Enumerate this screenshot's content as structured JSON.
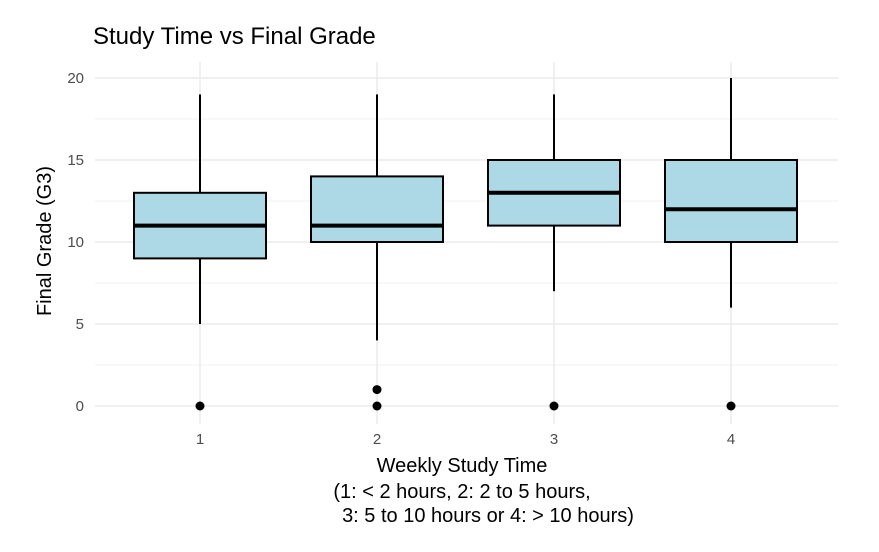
{
  "chart_data": {
    "type": "boxplot",
    "title": "Study Time vs Final Grade",
    "xlabel": [
      "Weekly Study Time",
      "(1: < 2 hours, 2: 2 to 5 hours,",
      "3: 5 to 10 hours or 4: > 10 hours)"
    ],
    "ylabel": "Final Grade (G3)",
    "categories": [
      "1",
      "2",
      "3",
      "4"
    ],
    "ylim": [
      -1,
      21
    ],
    "yticks": [
      0,
      5,
      10,
      15,
      20
    ],
    "grid": true,
    "legend": "none",
    "fill_color": "#add8e6",
    "boxes": [
      {
        "category": "1",
        "whisker_low": 5,
        "q1": 9,
        "median": 11,
        "q3": 13,
        "whisker_high": 19,
        "outliers": [
          0
        ]
      },
      {
        "category": "2",
        "whisker_low": 4,
        "q1": 10,
        "median": 11,
        "q3": 14,
        "whisker_high": 19,
        "outliers": [
          0,
          1
        ]
      },
      {
        "category": "3",
        "whisker_low": 7,
        "q1": 11,
        "median": 13,
        "q3": 15,
        "whisker_high": 19,
        "outliers": [
          0
        ]
      },
      {
        "category": "4",
        "whisker_low": 6,
        "q1": 10,
        "median": 12,
        "q3": 15,
        "whisker_high": 20,
        "outliers": [
          0
        ]
      }
    ]
  }
}
